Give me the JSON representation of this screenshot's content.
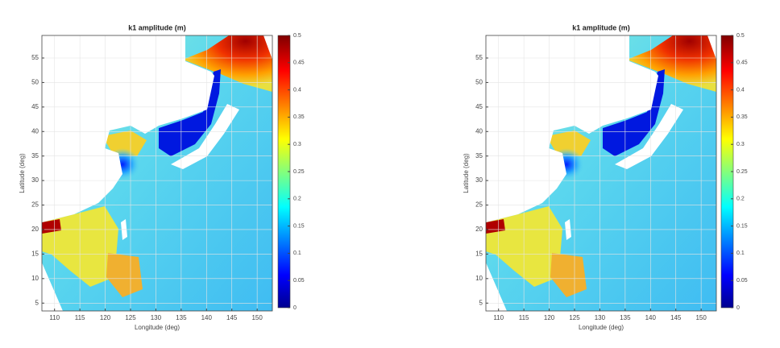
{
  "chart_data": [
    {
      "type": "heatmap",
      "title": "k1 amplitude (m)",
      "x_label": "Longitude (deg)",
      "y_label": "Latitude (deg)",
      "xlim": [
        107.5,
        153
      ],
      "xticks": [
        110,
        115,
        120,
        125,
        130,
        135,
        140,
        145,
        150
      ],
      "ylim": [
        3.4,
        59.6
      ],
      "yticks": [
        5,
        10,
        15,
        20,
        25,
        30,
        35,
        40,
        45,
        50,
        55
      ],
      "clim": [
        0,
        0.5
      ],
      "cticks": [
        0,
        0.05,
        0.1,
        0.15,
        0.2,
        0.25,
        0.3,
        0.35,
        0.4,
        0.45,
        0.5
      ],
      "colormap": "jet",
      "grid": true
    },
    {
      "type": "heatmap",
      "title": "k1 amplitude (m)",
      "x_label": "Longitude (deg)",
      "y_label": "Latitude (deg)",
      "xlim": [
        107.5,
        153
      ],
      "xticks": [
        110,
        115,
        120,
        125,
        130,
        135,
        140,
        145,
        150
      ],
      "ylim": [
        3.4,
        59.6
      ],
      "yticks": [
        5,
        10,
        15,
        20,
        25,
        30,
        35,
        40,
        45,
        50,
        55
      ],
      "clim": [
        0,
        0.5
      ],
      "cticks": [
        0,
        0.05,
        0.1,
        0.15,
        0.2,
        0.25,
        0.3,
        0.35,
        0.4,
        0.45,
        0.5
      ],
      "colormap": "jet",
      "grid": true
    }
  ]
}
